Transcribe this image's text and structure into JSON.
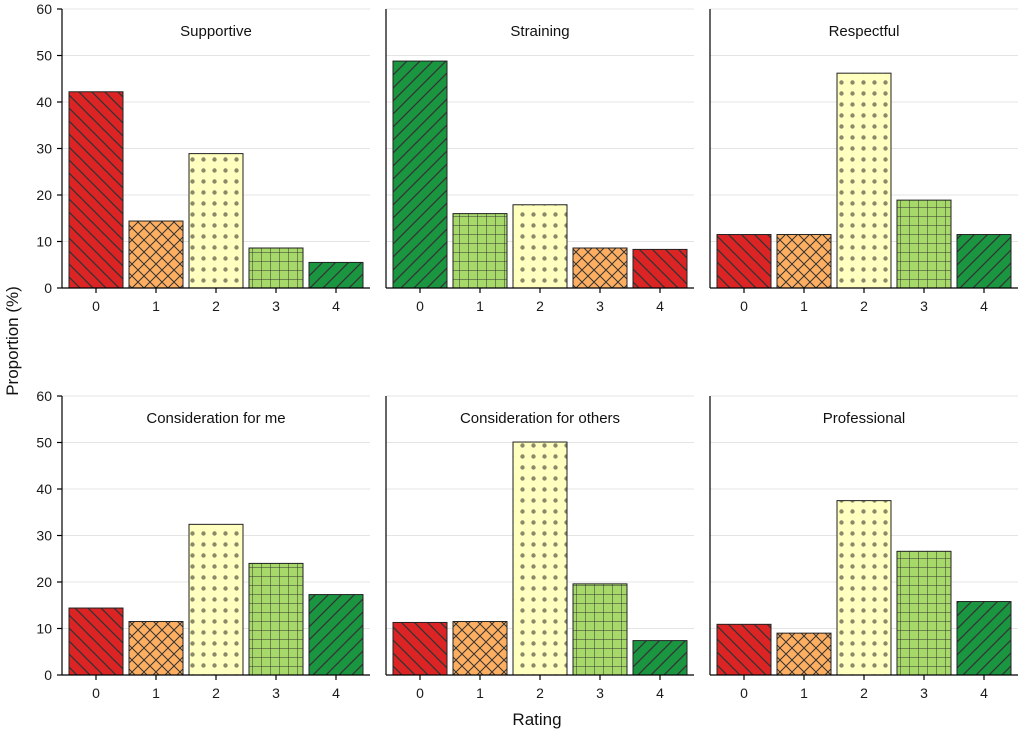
{
  "chart_data": {
    "type": "bar",
    "xlabel": "Rating",
    "ylabel": "Proportion (%)",
    "ylim": [
      0,
      60
    ],
    "yticks": [
      0,
      10,
      20,
      30,
      40,
      50,
      60
    ],
    "categories": [
      "0",
      "1",
      "2",
      "3",
      "4"
    ],
    "palette": {
      "red": "#dc2424",
      "orange": "#fdae61",
      "yellow": "#ffffbf",
      "lightgreen": "#a6d96a",
      "green": "#1a9641"
    },
    "patterns": {
      "red": "diag-back",
      "orange": "crosshatch",
      "yellow": "dots",
      "lightgreen": "grid",
      "green": "diag-fwd"
    },
    "panels": [
      {
        "title": "Supportive",
        "values": [
          42.2,
          14.4,
          28.9,
          8.6,
          5.5
        ],
        "colors": [
          "red",
          "orange",
          "yellow",
          "lightgreen",
          "green"
        ]
      },
      {
        "title": "Straining",
        "values": [
          48.8,
          16.0,
          17.9,
          8.6,
          8.3
        ],
        "colors": [
          "green",
          "lightgreen",
          "yellow",
          "orange",
          "red"
        ]
      },
      {
        "title": "Respectful",
        "values": [
          11.5,
          11.5,
          46.2,
          18.9,
          11.5
        ],
        "colors": [
          "red",
          "orange",
          "yellow",
          "lightgreen",
          "green"
        ]
      },
      {
        "title": "Consideration for me",
        "values": [
          14.4,
          11.5,
          32.4,
          24.0,
          17.3
        ],
        "colors": [
          "red",
          "orange",
          "yellow",
          "lightgreen",
          "green"
        ]
      },
      {
        "title": "Consideration for others",
        "values": [
          11.3,
          11.5,
          50.1,
          19.6,
          7.4
        ],
        "colors": [
          "red",
          "orange",
          "yellow",
          "lightgreen",
          "green"
        ]
      },
      {
        "title": "Professional",
        "values": [
          10.9,
          9.0,
          37.5,
          26.6,
          15.8
        ],
        "colors": [
          "red",
          "orange",
          "yellow",
          "lightgreen",
          "green"
        ]
      }
    ]
  }
}
